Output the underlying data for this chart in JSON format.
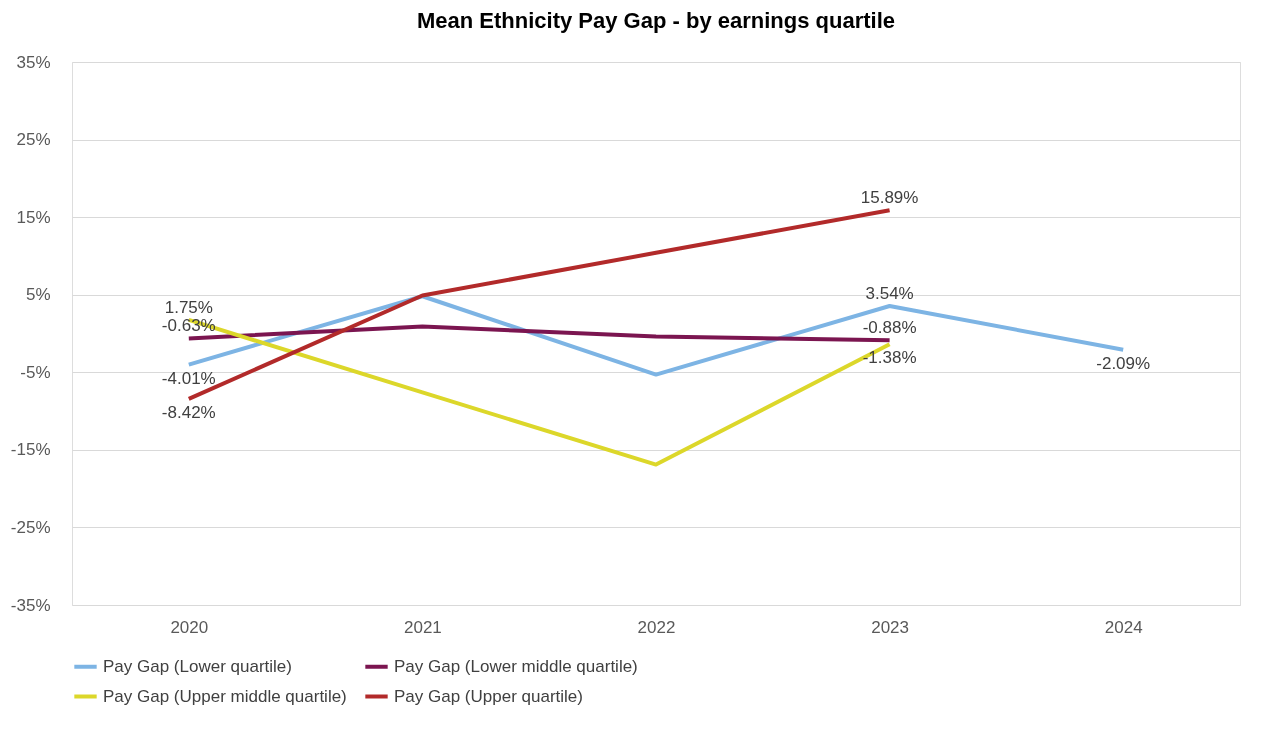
{
  "chart_data": {
    "type": "line",
    "title": "Mean Ethnicity Pay Gap - by earnings quartile",
    "categories": [
      "2020",
      "2021",
      "2022",
      "2023",
      "2024"
    ],
    "series": [
      {
        "name": "Pay Gap (Lower quartile)",
        "color": "#7db4e4",
        "values": [
          -4.01,
          4.8,
          -5.3,
          3.54,
          -2.09
        ],
        "value_labels": [
          "-4.01%",
          null,
          null,
          "3.54%",
          "-2.09%"
        ]
      },
      {
        "name": "Pay Gap (Lower middle quartile)",
        "color": "#7b1550",
        "values": [
          -0.63,
          0.9,
          -0.4,
          -0.88,
          null
        ],
        "value_labels": [
          "-0.63%",
          null,
          null,
          "-0.88%",
          null
        ]
      },
      {
        "name": "Pay Gap (Upper middle quartile)",
        "color": "#dcd72a",
        "values": [
          1.75,
          -7.6,
          -16.9,
          -1.38,
          null
        ],
        "value_labels": [
          "1.75%",
          null,
          null,
          "-1.38%",
          null
        ]
      },
      {
        "name": "Pay Gap (Upper quartile)",
        "color": "#b22a2a",
        "values": [
          -8.42,
          4.9,
          10.4,
          15.89,
          null
        ],
        "value_labels": [
          "-8.42%",
          null,
          null,
          "15.89%",
          null
        ]
      }
    ],
    "ylim": [
      -35,
      35
    ],
    "yticks": [
      {
        "value": -35,
        "label": "-35%"
      },
      {
        "value": -25,
        "label": "-25%"
      },
      {
        "value": -15,
        "label": "-15%"
      },
      {
        "value": -5,
        "label": "-5%"
      },
      {
        "value": 5,
        "label": "5%"
      },
      {
        "value": 15,
        "label": "15%"
      },
      {
        "value": 25,
        "label": "25%"
      },
      {
        "value": 35,
        "label": "35%"
      }
    ],
    "grid": "y",
    "legend": "bottom",
    "marker": "none",
    "line_style": "solid"
  }
}
